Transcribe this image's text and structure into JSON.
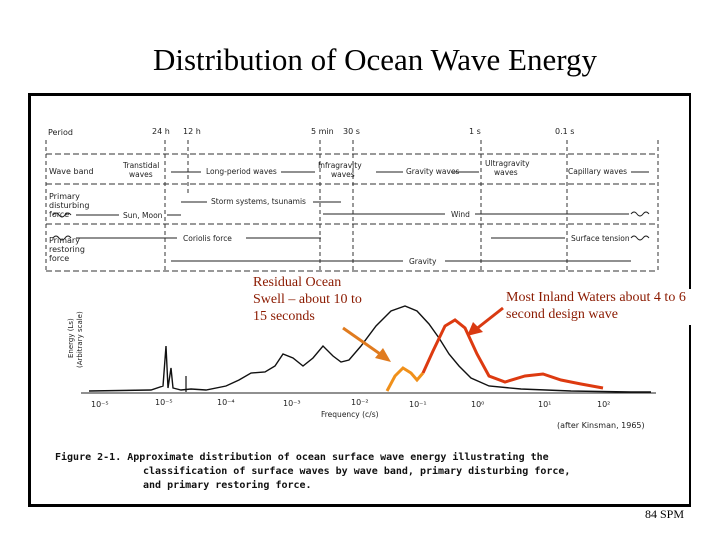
{
  "slide": {
    "title": "Distribution of Ocean Wave Energy",
    "footer": "84 SPM"
  },
  "figure": {
    "period_label": "Period",
    "periods": [
      "24 h",
      "12 h",
      "5 min",
      "30 s",
      "1 s",
      "0.1 s"
    ],
    "rows": {
      "wave_band": "Wave band",
      "primary_disturbing_force": [
        "Primary",
        "disturbing",
        "force"
      ],
      "primary_restoring_force": [
        "Primary",
        "restoring",
        "force"
      ]
    },
    "wave_band_labels": {
      "transtidal": [
        "Transtidal",
        "waves"
      ],
      "long_period": "Long-period waves",
      "infragravity": [
        "Infragravity",
        "waves"
      ],
      "gravity": "Gravity waves",
      "ultragravity": [
        "Ultragravity",
        "waves"
      ],
      "capillary": "Capillary waves"
    },
    "disturbing_labels": {
      "sun_moon": "Sun, Moon",
      "storm": "Storm systems, tsunamis",
      "wind": "Wind"
    },
    "restoring_labels": {
      "coriolis": "Coriolis force",
      "surface_tension": "Surface tension",
      "gravity": "Gravity"
    },
    "y_axis_label": [
      "Energy (Ls)",
      "(Arbitrary scale)"
    ],
    "x_axis_label": "Frequency (c/s)",
    "x_ticks": [
      "10⁻⁵",
      "10⁻⁵",
      "10⁻⁴",
      "10⁻³",
      "10⁻²",
      "10⁻¹",
      "10⁰",
      "10¹",
      "10²"
    ],
    "source": "(after Kinsman, 1965)",
    "caption": [
      "Figure 2-1.  Approximate distribution of ocean surface wave energy illustrating the",
      "classification of surface waves by wave band, primary disturbing force,",
      "and primary restoring force."
    ]
  },
  "callouts": {
    "left": "Residual Ocean Swell – about 10 to 15 seconds",
    "right": "Most Inland Waters about 4 to 6 second design wave"
  },
  "colors": {
    "callout_text": "#8b1a00",
    "arrow_left": "#e07b1f",
    "arrow_right": "#d93a12",
    "orange_curve": "#f0901a",
    "red_curve": "#dd3a10"
  }
}
